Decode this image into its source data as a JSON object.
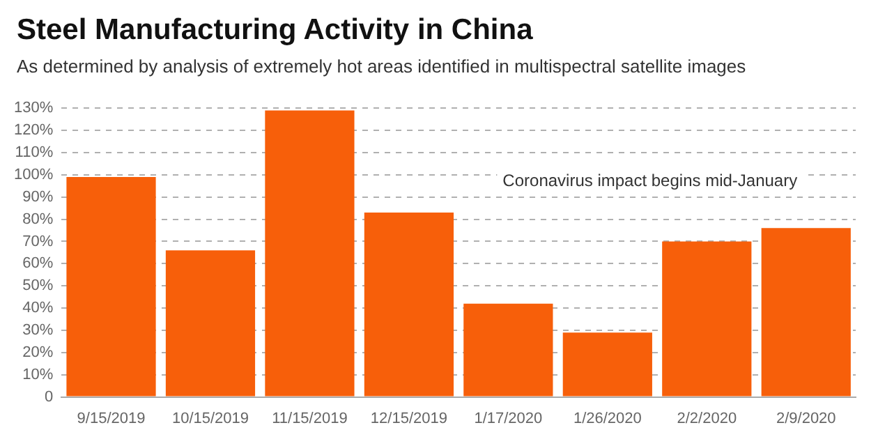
{
  "chart_data": {
    "type": "bar",
    "title": "Steel Manufacturing Activity in China",
    "subtitle": "As determined by analysis of extremely hot areas identified in multispectral satellite images",
    "categories": [
      "9/15/2019",
      "10/15/2019",
      "11/15/2019",
      "12/15/2019",
      "1/17/2020",
      "1/26/2020",
      "2/2/2020",
      "2/9/2020"
    ],
    "values": [
      99,
      66,
      129,
      83,
      42,
      29,
      70,
      76
    ],
    "color": "#f75f0a",
    "ylim": [
      0,
      130
    ],
    "yticks": [
      0,
      {
        "value": 10,
        "label": "10%"
      },
      {
        "value": 20,
        "label": "20%"
      },
      {
        "value": 30,
        "label": "30%"
      },
      {
        "value": 40,
        "label": "40%"
      },
      {
        "value": 50,
        "label": "50%"
      },
      {
        "value": 60,
        "label": "60%"
      },
      {
        "value": 70,
        "label": "70%"
      },
      {
        "value": 80,
        "label": "80%"
      },
      {
        "value": 90,
        "label": "90%"
      },
      {
        "value": 100,
        "label": "100%"
      },
      {
        "value": 110,
        "label": "110%"
      },
      {
        "value": 120,
        "label": "120%"
      },
      {
        "value": 130,
        "label": "130%"
      }
    ],
    "grid": "y",
    "annotations": [
      "Coronavirus impact begins mid-January"
    ]
  }
}
